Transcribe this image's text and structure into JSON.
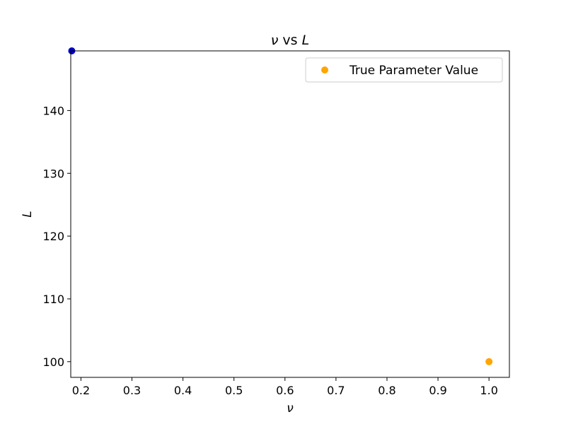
{
  "chart_data": {
    "type": "scatter",
    "title_parts": {
      "left": "ν",
      "middle": " vs ",
      "right": "L"
    },
    "xlabel": "ν",
    "ylabel": "L",
    "xlim": [
      0.18,
      1.04
    ],
    "ylim": [
      97.5,
      149.5
    ],
    "xticks": [
      0.2,
      0.3,
      0.4,
      0.5,
      0.6,
      0.7,
      0.8,
      0.9,
      1.0
    ],
    "xtick_labels": [
      "0.2",
      "0.3",
      "0.4",
      "0.5",
      "0.6",
      "0.7",
      "0.8",
      "0.9",
      "1.0"
    ],
    "yticks": [
      100,
      110,
      120,
      130,
      140
    ],
    "ytick_labels": [
      "100",
      "110",
      "120",
      "130",
      "140"
    ],
    "legend_position": "top-right",
    "grid": false,
    "series": [
      {
        "name": "True Parameter Value",
        "color": "#FFA500",
        "points": [
          {
            "x": 1.0,
            "y": 100
          }
        ]
      },
      {
        "color": "#0000CD",
        "points": [
          {
            "x": 0.182,
            "y": 149.5
          }
        ]
      }
    ]
  }
}
